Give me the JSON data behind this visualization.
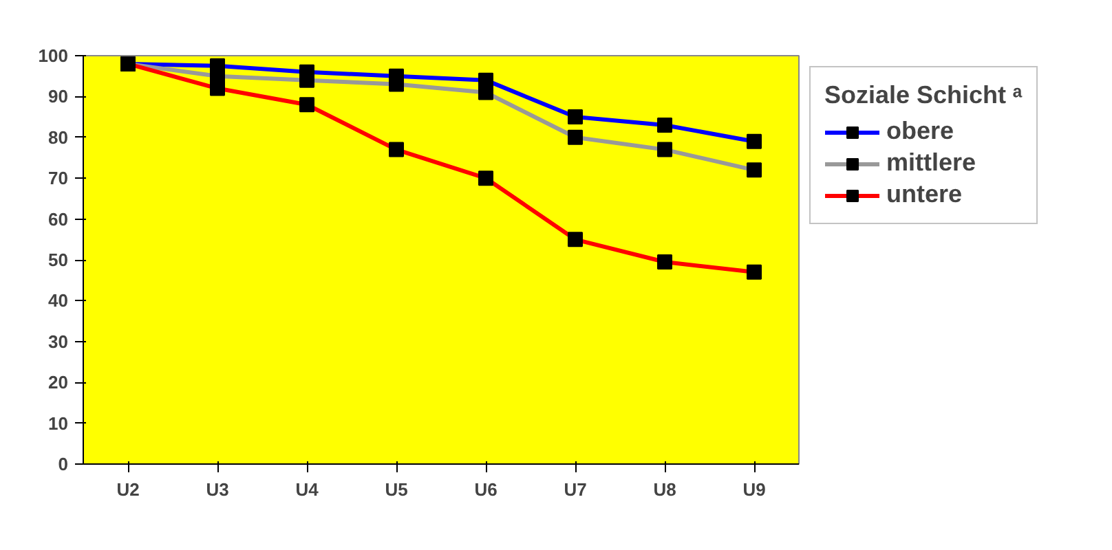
{
  "chart_data": {
    "type": "line",
    "categories": [
      "U2",
      "U3",
      "U4",
      "U5",
      "U6",
      "U7",
      "U8",
      "U9"
    ],
    "series": [
      {
        "name": "obere",
        "color": "#0000ff",
        "values": [
          98,
          97.5,
          96,
          95,
          94,
          85,
          83,
          79
        ]
      },
      {
        "name": "mittlere",
        "color": "#999999",
        "values": [
          98,
          95,
          94,
          93,
          91,
          80,
          77,
          72
        ]
      },
      {
        "name": "untere",
        "color": "#ff0000",
        "values": [
          98,
          92,
          88,
          77,
          70,
          55,
          49.5,
          47
        ]
      }
    ],
    "ylim": [
      0,
      100
    ],
    "yticks": [
      0,
      10,
      20,
      30,
      40,
      50,
      60,
      70,
      80,
      90,
      100
    ],
    "legend_title": "Soziale Schicht ᵃ",
    "legend": "right",
    "marker": "square",
    "grid": false
  }
}
